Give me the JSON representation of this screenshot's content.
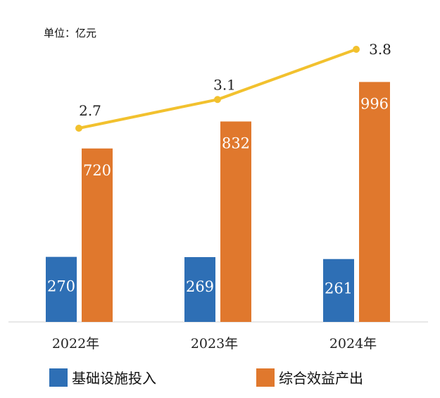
{
  "unit_label": "单位：亿元",
  "chart_data": {
    "type": "bar",
    "categories": [
      "2022年",
      "2023年",
      "2024年"
    ],
    "series": [
      {
        "name": "基础设施投入",
        "type": "bar",
        "values": [
          270,
          269,
          261
        ],
        "color": "#2E6FB5"
      },
      {
        "name": "综合效益产出",
        "type": "bar",
        "values": [
          720,
          832,
          996
        ],
        "color": "#E0782D"
      },
      {
        "name": "",
        "type": "line",
        "values": [
          2.7,
          3.1,
          3.8
        ],
        "color": "#F2C12E"
      }
    ],
    "legend_position": "bottom",
    "grid": false
  }
}
